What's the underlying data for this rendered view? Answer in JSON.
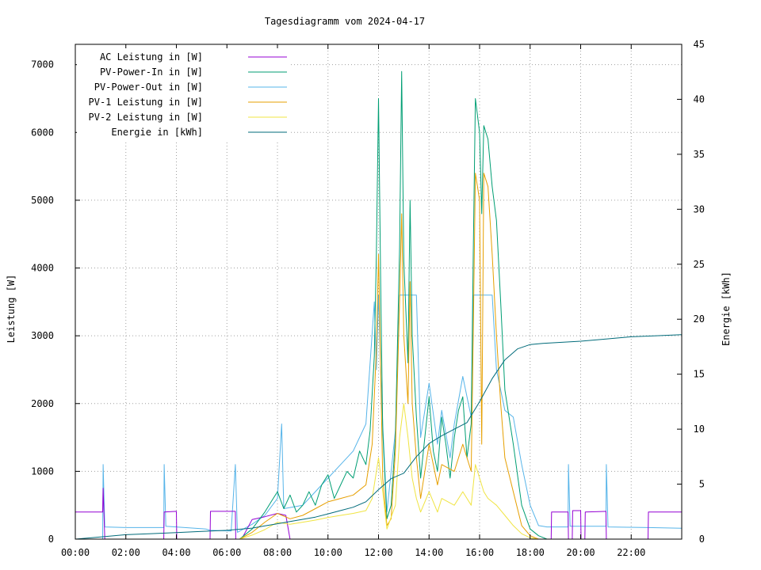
{
  "chart_data": {
    "type": "line",
    "title": "Tagesdiagramm vom 2024-04-17",
    "ylabel": "Leistung [W]",
    "y2label": "Energie [kWh]",
    "ylim": [
      0,
      7300
    ],
    "y2lim": [
      0,
      45
    ],
    "xlim": [
      "00:00",
      "24:00"
    ],
    "x_ticks": [
      "00:00",
      "02:00",
      "04:00",
      "06:00",
      "08:00",
      "10:00",
      "12:00",
      "14:00",
      "16:00",
      "18:00",
      "20:00",
      "22:00"
    ],
    "y_ticks": [
      0,
      1000,
      2000,
      3000,
      4000,
      5000,
      6000,
      7000
    ],
    "y2_ticks": [
      0,
      5,
      10,
      15,
      20,
      25,
      30,
      35,
      40,
      45
    ],
    "grid": true,
    "legend_position": "top-left",
    "series": [
      {
        "name": "AC Leistung in [W]",
        "axis": "y1",
        "color": "#9400d3",
        "points": [
          [
            "00:00",
            400
          ],
          [
            "01:05",
            400
          ],
          [
            "01:06",
            750
          ],
          [
            "01:10",
            0
          ],
          [
            "03:30",
            0
          ],
          [
            "03:31",
            400
          ],
          [
            "04:00",
            410
          ],
          [
            "04:01",
            0
          ],
          [
            "05:20",
            0
          ],
          [
            "05:21",
            410
          ],
          [
            "06:20",
            410
          ],
          [
            "06:21",
            0
          ],
          [
            "06:35",
            0
          ],
          [
            "07:00",
            290
          ],
          [
            "07:30",
            330
          ],
          [
            "08:00",
            380
          ],
          [
            "08:20",
            350
          ],
          [
            "08:30",
            0
          ],
          [
            "18:50",
            0
          ],
          [
            "18:51",
            400
          ],
          [
            "19:30",
            400
          ],
          [
            "19:31",
            0
          ],
          [
            "19:40",
            0
          ],
          [
            "19:41",
            420
          ],
          [
            "20:00",
            420
          ],
          [
            "20:01",
            0
          ],
          [
            "20:10",
            0
          ],
          [
            "20:11",
            400
          ],
          [
            "21:00",
            410
          ],
          [
            "21:01",
            0
          ],
          [
            "22:40",
            0
          ],
          [
            "22:41",
            400
          ],
          [
            "23:59",
            400
          ]
        ]
      },
      {
        "name": "PV-Power-In in [W]",
        "axis": "y1",
        "color": "#009e73",
        "points": [
          [
            "06:30",
            0
          ],
          [
            "07:00",
            150
          ],
          [
            "07:30",
            400
          ],
          [
            "07:45",
            550
          ],
          [
            "08:00",
            700
          ],
          [
            "08:15",
            450
          ],
          [
            "08:30",
            650
          ],
          [
            "08:45",
            400
          ],
          [
            "09:00",
            500
          ],
          [
            "09:15",
            700
          ],
          [
            "09:30",
            500
          ],
          [
            "09:45",
            800
          ],
          [
            "10:00",
            950
          ],
          [
            "10:15",
            600
          ],
          [
            "10:30",
            800
          ],
          [
            "10:45",
            1000
          ],
          [
            "11:00",
            900
          ],
          [
            "11:15",
            1300
          ],
          [
            "11:30",
            1100
          ],
          [
            "11:40",
            1600
          ],
          [
            "11:50",
            2700
          ],
          [
            "11:55",
            4200
          ],
          [
            "12:00",
            6500
          ],
          [
            "12:05",
            3800
          ],
          [
            "12:10",
            1600
          ],
          [
            "12:20",
            300
          ],
          [
            "12:30",
            500
          ],
          [
            "12:40",
            1500
          ],
          [
            "12:50",
            4300
          ],
          [
            "12:55",
            6900
          ],
          [
            "13:00",
            4100
          ],
          [
            "13:10",
            2600
          ],
          [
            "13:15",
            5000
          ],
          [
            "13:20",
            3000
          ],
          [
            "13:30",
            1800
          ],
          [
            "13:40",
            900
          ],
          [
            "13:50",
            1500
          ],
          [
            "14:00",
            2100
          ],
          [
            "14:10",
            1300
          ],
          [
            "14:20",
            1000
          ],
          [
            "14:30",
            1800
          ],
          [
            "14:40",
            1400
          ],
          [
            "14:50",
            900
          ],
          [
            "15:00",
            1500
          ],
          [
            "15:10",
            1900
          ],
          [
            "15:20",
            2100
          ],
          [
            "15:30",
            1200
          ],
          [
            "15:40",
            1700
          ],
          [
            "15:45",
            4200
          ],
          [
            "15:50",
            6500
          ],
          [
            "16:00",
            6000
          ],
          [
            "16:05",
            4800
          ],
          [
            "16:10",
            6100
          ],
          [
            "16:20",
            5900
          ],
          [
            "16:30",
            5200
          ],
          [
            "16:40",
            4700
          ],
          [
            "16:50",
            3500
          ],
          [
            "17:00",
            2200
          ],
          [
            "17:20",
            1400
          ],
          [
            "17:40",
            500
          ],
          [
            "18:00",
            150
          ],
          [
            "18:20",
            50
          ],
          [
            "18:40",
            0
          ]
        ]
      },
      {
        "name": "PV-Power-Out in [W]",
        "axis": "y1",
        "color": "#56b4e9",
        "points": [
          [
            "00:00",
            0
          ],
          [
            "01:05",
            0
          ],
          [
            "01:06",
            1100
          ],
          [
            "01:10",
            180
          ],
          [
            "02:00",
            170
          ],
          [
            "03:30",
            170
          ],
          [
            "03:31",
            1100
          ],
          [
            "03:35",
            190
          ],
          [
            "05:10",
            150
          ],
          [
            "05:20",
            130
          ],
          [
            "06:10",
            120
          ],
          [
            "06:20",
            1100
          ],
          [
            "06:25",
            100
          ],
          [
            "07:00",
            220
          ],
          [
            "07:30",
            350
          ],
          [
            "08:00",
            600
          ],
          [
            "08:10",
            1700
          ],
          [
            "08:15",
            450
          ],
          [
            "09:00",
            500
          ],
          [
            "09:30",
            700
          ],
          [
            "10:00",
            900
          ],
          [
            "10:30",
            1100
          ],
          [
            "11:00",
            1300
          ],
          [
            "11:30",
            1700
          ],
          [
            "11:40",
            2600
          ],
          [
            "11:50",
            3500
          ],
          [
            "11:55",
            2500
          ],
          [
            "12:00",
            3600
          ],
          [
            "12:05",
            2500
          ],
          [
            "12:10",
            1700
          ],
          [
            "12:20",
            400
          ],
          [
            "12:40",
            1600
          ],
          [
            "12:50",
            3600
          ],
          [
            "13:00",
            3600
          ],
          [
            "13:30",
            3600
          ],
          [
            "13:40",
            1500
          ],
          [
            "14:00",
            2300
          ],
          [
            "14:20",
            1400
          ],
          [
            "14:30",
            1900
          ],
          [
            "14:50",
            1200
          ],
          [
            "15:00",
            1700
          ],
          [
            "15:20",
            2400
          ],
          [
            "15:40",
            1800
          ],
          [
            "15:45",
            3600
          ],
          [
            "16:00",
            3600
          ],
          [
            "16:30",
            3600
          ],
          [
            "16:40",
            2500
          ],
          [
            "17:00",
            1900
          ],
          [
            "17:20",
            1800
          ],
          [
            "17:40",
            1100
          ],
          [
            "18:00",
            500
          ],
          [
            "18:20",
            200
          ],
          [
            "18:40",
            180
          ],
          [
            "19:00",
            180
          ],
          [
            "19:30",
            180
          ],
          [
            "19:31",
            1100
          ],
          [
            "19:35",
            190
          ],
          [
            "21:00",
            190
          ],
          [
            "21:01",
            1100
          ],
          [
            "21:05",
            180
          ],
          [
            "22:40",
            170
          ],
          [
            "23:59",
            160
          ]
        ]
      },
      {
        "name": "PV-1 Leistung in [W]",
        "axis": "y1",
        "color": "#e69f00",
        "points": [
          [
            "06:30",
            0
          ],
          [
            "07:00",
            100
          ],
          [
            "07:30",
            250
          ],
          [
            "08:00",
            380
          ],
          [
            "08:30",
            300
          ],
          [
            "09:00",
            350
          ],
          [
            "09:30",
            450
          ],
          [
            "10:00",
            550
          ],
          [
            "10:30",
            600
          ],
          [
            "11:00",
            650
          ],
          [
            "11:30",
            800
          ],
          [
            "11:45",
            1400
          ],
          [
            "11:55",
            2800
          ],
          [
            "12:00",
            4200
          ],
          [
            "12:05",
            2500
          ],
          [
            "12:10",
            900
          ],
          [
            "12:20",
            200
          ],
          [
            "12:30",
            300
          ],
          [
            "12:40",
            1300
          ],
          [
            "12:50",
            3500
          ],
          [
            "12:55",
            4800
          ],
          [
            "13:00",
            3000
          ],
          [
            "13:10",
            2000
          ],
          [
            "13:15",
            3800
          ],
          [
            "13:20",
            2000
          ],
          [
            "13:30",
            1200
          ],
          [
            "13:40",
            600
          ],
          [
            "14:00",
            1400
          ],
          [
            "14:20",
            800
          ],
          [
            "14:30",
            1100
          ],
          [
            "15:00",
            1000
          ],
          [
            "15:20",
            1400
          ],
          [
            "15:40",
            1000
          ],
          [
            "15:45",
            3000
          ],
          [
            "15:50",
            5400
          ],
          [
            "16:00",
            5000
          ],
          [
            "16:05",
            1400
          ],
          [
            "16:10",
            5400
          ],
          [
            "16:20",
            5200
          ],
          [
            "16:30",
            4200
          ],
          [
            "16:40",
            3000
          ],
          [
            "16:50",
            2000
          ],
          [
            "17:00",
            1200
          ],
          [
            "17:20",
            700
          ],
          [
            "17:40",
            200
          ],
          [
            "18:00",
            50
          ],
          [
            "18:20",
            0
          ]
        ]
      },
      {
        "name": "PV-2 Leistung in [W]",
        "axis": "y1",
        "color": "#f0e442",
        "points": [
          [
            "06:30",
            0
          ],
          [
            "07:00",
            60
          ],
          [
            "07:30",
            140
          ],
          [
            "08:00",
            250
          ],
          [
            "08:30",
            220
          ],
          [
            "09:00",
            250
          ],
          [
            "09:30",
            280
          ],
          [
            "10:00",
            320
          ],
          [
            "10:30",
            350
          ],
          [
            "11:00",
            380
          ],
          [
            "11:30",
            420
          ],
          [
            "11:45",
            600
          ],
          [
            "12:00",
            1200
          ],
          [
            "12:10",
            700
          ],
          [
            "12:20",
            150
          ],
          [
            "12:40",
            500
          ],
          [
            "12:50",
            1500
          ],
          [
            "13:00",
            2000
          ],
          [
            "13:10",
            1500
          ],
          [
            "13:20",
            900
          ],
          [
            "13:30",
            600
          ],
          [
            "13:40",
            400
          ],
          [
            "14:00",
            700
          ],
          [
            "14:20",
            400
          ],
          [
            "14:30",
            600
          ],
          [
            "15:00",
            500
          ],
          [
            "15:20",
            700
          ],
          [
            "15:40",
            500
          ],
          [
            "15:50",
            1100
          ],
          [
            "16:00",
            900
          ],
          [
            "16:10",
            700
          ],
          [
            "16:20",
            600
          ],
          [
            "16:30",
            550
          ],
          [
            "16:40",
            500
          ],
          [
            "17:00",
            350
          ],
          [
            "17:20",
            200
          ],
          [
            "17:40",
            80
          ],
          [
            "18:00",
            20
          ],
          [
            "18:20",
            0
          ]
        ]
      },
      {
        "name": "Energie in [kWh]",
        "axis": "y2",
        "color": "#006b7a",
        "points": [
          [
            "00:00",
            0.0
          ],
          [
            "01:00",
            0.2
          ],
          [
            "02:00",
            0.4
          ],
          [
            "03:00",
            0.5
          ],
          [
            "04:00",
            0.6
          ],
          [
            "05:00",
            0.7
          ],
          [
            "06:00",
            0.8
          ],
          [
            "07:00",
            1.0
          ],
          [
            "07:30",
            1.2
          ],
          [
            "08:00",
            1.4
          ],
          [
            "08:30",
            1.6
          ],
          [
            "09:00",
            1.8
          ],
          [
            "09:30",
            2.0
          ],
          [
            "10:00",
            2.3
          ],
          [
            "10:30",
            2.6
          ],
          [
            "11:00",
            2.9
          ],
          [
            "11:30",
            3.4
          ],
          [
            "12:00",
            4.5
          ],
          [
            "12:30",
            5.5
          ],
          [
            "13:00",
            6.0
          ],
          [
            "13:30",
            7.5
          ],
          [
            "14:00",
            8.7
          ],
          [
            "14:30",
            9.4
          ],
          [
            "15:00",
            10.0
          ],
          [
            "15:30",
            10.6
          ],
          [
            "16:00",
            12.5
          ],
          [
            "16:30",
            14.6
          ],
          [
            "17:00",
            16.3
          ],
          [
            "17:30",
            17.3
          ],
          [
            "18:00",
            17.7
          ],
          [
            "18:30",
            17.8
          ],
          [
            "20:00",
            18.0
          ],
          [
            "21:00",
            18.2
          ],
          [
            "22:00",
            18.4
          ],
          [
            "23:00",
            18.5
          ],
          [
            "23:59",
            18.6
          ]
        ]
      }
    ]
  }
}
